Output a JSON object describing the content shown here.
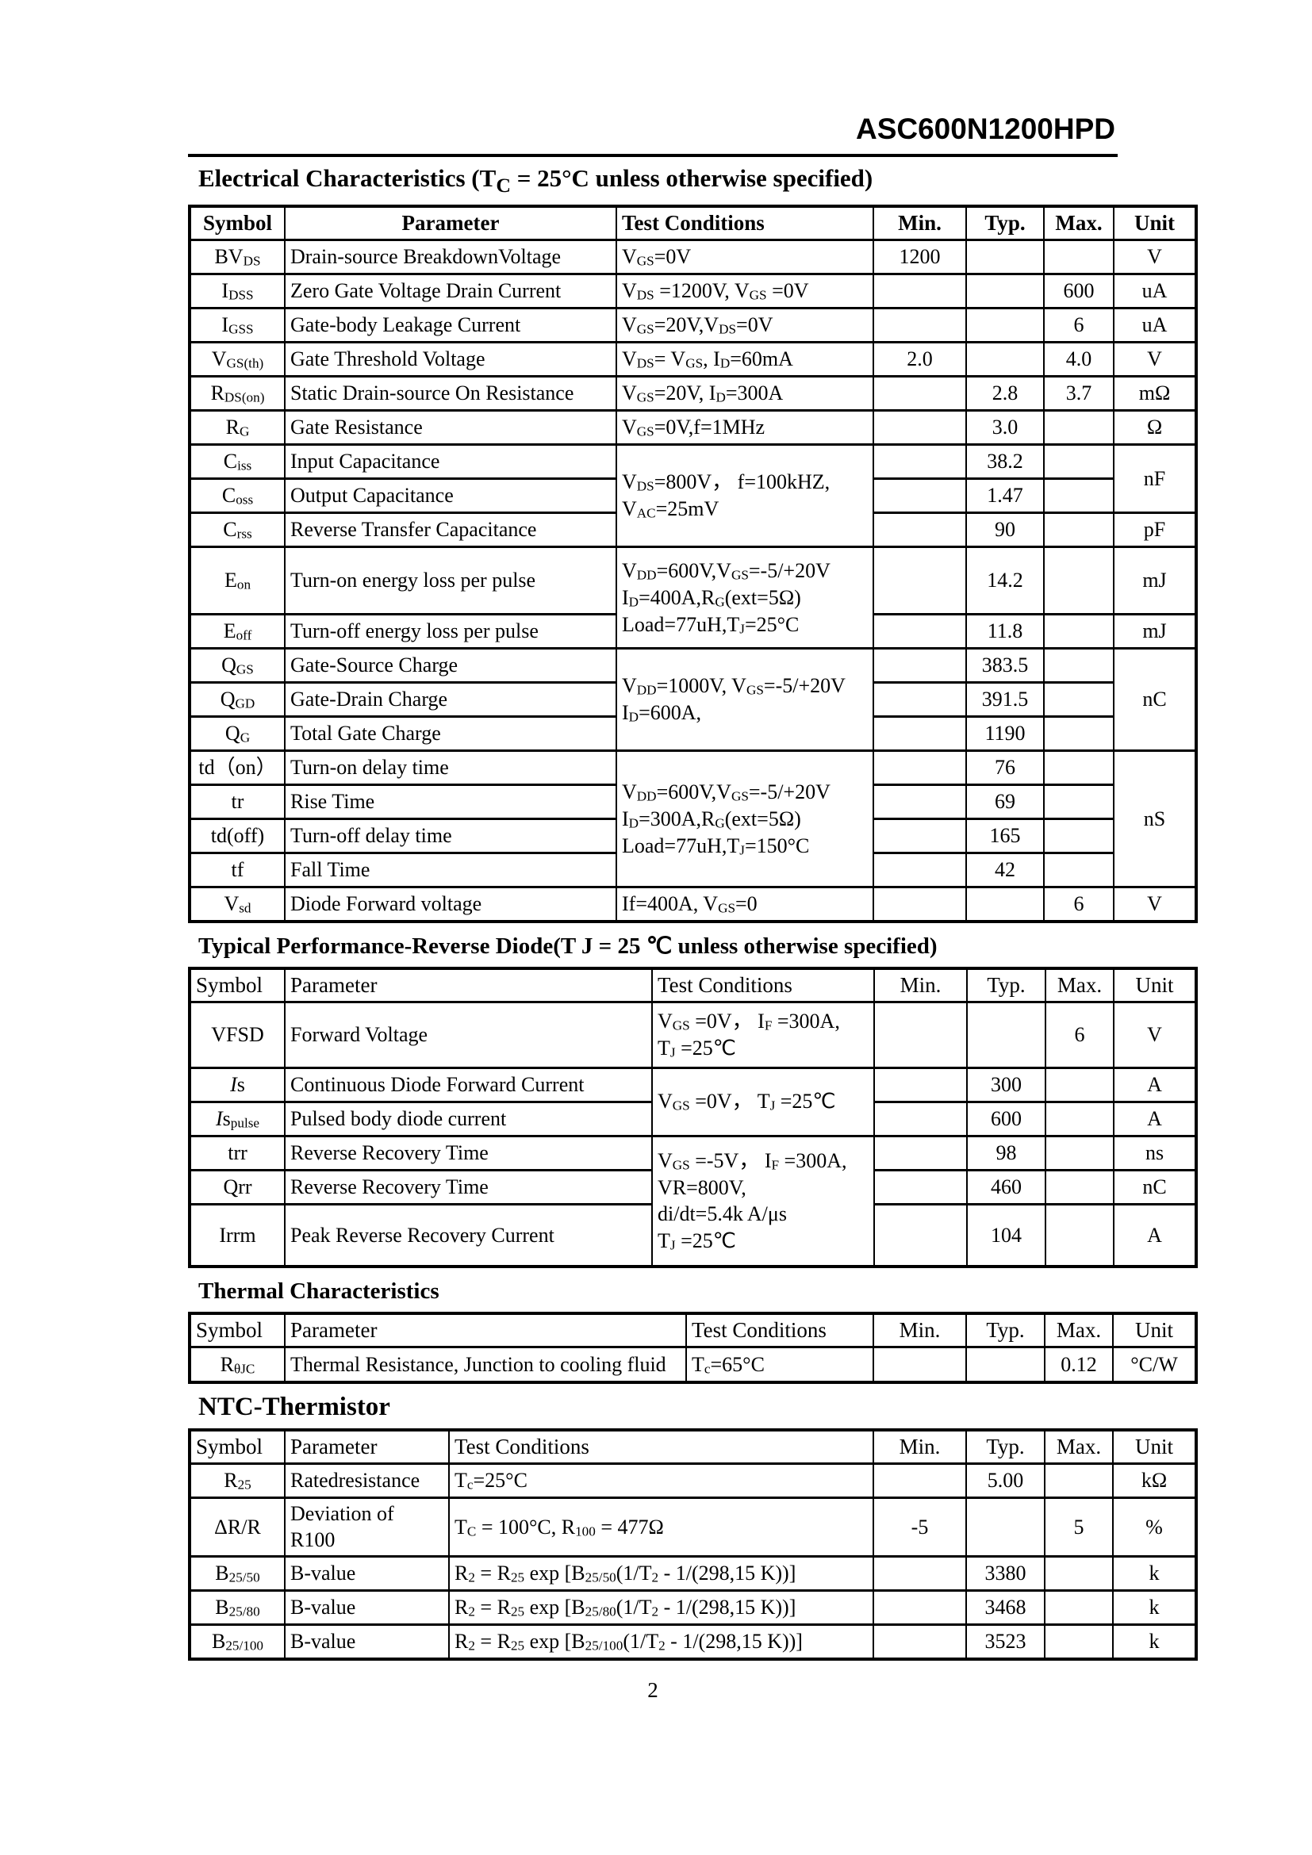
{
  "page": {
    "doc_title": "ASC600N1200HPD",
    "page_number": "2"
  },
  "sections": [
    {
      "id": "electrical",
      "title": "Electrical Characteristics (T~C~ = 25°C unless otherwise specified)",
      "columns": [
        "Symbol",
        "Parameter",
        "Test Conditions",
        "Min.",
        "Typ.",
        "Max.",
        "Unit"
      ],
      "rows": [
        {
          "cells": [
            {
              "c": 0,
              "t": "BV~DS~"
            },
            {
              "c": 1,
              "t": "Drain-source BreakdownVoltage"
            },
            {
              "c": 2,
              "t": "V~GS~=0V"
            },
            {
              "c": 3,
              "t": "1200"
            },
            {
              "c": 4,
              "t": ""
            },
            {
              "c": 5,
              "t": ""
            },
            {
              "c": 6,
              "t": "V"
            }
          ]
        },
        {
          "cells": [
            {
              "c": 0,
              "t": "I~DSS~"
            },
            {
              "c": 1,
              "t": "Zero Gate Voltage Drain Current"
            },
            {
              "c": 2,
              "t": "V~DS~ =1200V, V~GS~ =0V"
            },
            {
              "c": 3,
              "t": ""
            },
            {
              "c": 4,
              "t": ""
            },
            {
              "c": 5,
              "t": "600"
            },
            {
              "c": 6,
              "t": "uA"
            }
          ]
        },
        {
          "cells": [
            {
              "c": 0,
              "t": "I~GSS~"
            },
            {
              "c": 1,
              "t": "Gate-body Leakage Current"
            },
            {
              "c": 2,
              "t": "V~GS~=20V,V~DS~=0V"
            },
            {
              "c": 3,
              "t": ""
            },
            {
              "c": 4,
              "t": ""
            },
            {
              "c": 5,
              "t": "6"
            },
            {
              "c": 6,
              "t": "uA"
            }
          ]
        },
        {
          "cells": [
            {
              "c": 0,
              "t": "V~GS(th)~"
            },
            {
              "c": 1,
              "t": "Gate Threshold Voltage"
            },
            {
              "c": 2,
              "t": "V~DS~= V~GS~, I~D~=60mA"
            },
            {
              "c": 3,
              "t": "2.0"
            },
            {
              "c": 4,
              "t": ""
            },
            {
              "c": 5,
              "t": "4.0"
            },
            {
              "c": 6,
              "t": "V"
            }
          ]
        },
        {
          "cells": [
            {
              "c": 0,
              "t": "R~DS(on)~"
            },
            {
              "c": 1,
              "t": "Static Drain-source On Resistance"
            },
            {
              "c": 2,
              "t": "V~GS~=20V, I~D~=300A"
            },
            {
              "c": 3,
              "t": ""
            },
            {
              "c": 4,
              "t": "2.8"
            },
            {
              "c": 5,
              "t": "3.7"
            },
            {
              "c": 6,
              "t": "mΩ"
            }
          ]
        },
        {
          "cells": [
            {
              "c": 0,
              "t": "R~G~"
            },
            {
              "c": 1,
              "t": "Gate Resistance"
            },
            {
              "c": 2,
              "t": "V~GS~=0V,f=1MHz"
            },
            {
              "c": 3,
              "t": ""
            },
            {
              "c": 4,
              "t": "3.0"
            },
            {
              "c": 5,
              "t": ""
            },
            {
              "c": 6,
              "t": "Ω"
            }
          ]
        },
        {
          "cells": [
            {
              "c": 0,
              "t": "C~iss~"
            },
            {
              "c": 1,
              "t": "Input Capacitance"
            },
            {
              "c": 2,
              "t": "V~DS~=800V， f=100kHZ,\nV~AC~=25mV",
              "rs": 3
            },
            {
              "c": 3,
              "t": ""
            },
            {
              "c": 4,
              "t": "38.2"
            },
            {
              "c": 5,
              "t": ""
            },
            {
              "c": 6,
              "t": "nF",
              "rs": 2
            }
          ]
        },
        {
          "cells": [
            {
              "c": 0,
              "t": "C~oss~"
            },
            {
              "c": 1,
              "t": "Output Capacitance"
            },
            {
              "c": 3,
              "t": ""
            },
            {
              "c": 4,
              "t": "1.47"
            },
            {
              "c": 5,
              "t": ""
            }
          ]
        },
        {
          "cells": [
            {
              "c": 0,
              "t": "C~rss~"
            },
            {
              "c": 1,
              "t": "Reverse Transfer Capacitance"
            },
            {
              "c": 3,
              "t": ""
            },
            {
              "c": 4,
              "t": "90"
            },
            {
              "c": 5,
              "t": ""
            },
            {
              "c": 6,
              "t": "pF"
            }
          ]
        },
        {
          "cells": [
            {
              "c": 0,
              "t": "E~on~"
            },
            {
              "c": 1,
              "t": "Turn-on energy loss per pulse"
            },
            {
              "c": 2,
              "t": "V~DD~=600V,V~GS~=-5/+20V\nI~D~=400A,R~G~(ext=5Ω)\nLoad=77uH,T~J~=25°C",
              "rs": 2
            },
            {
              "c": 3,
              "t": ""
            },
            {
              "c": 4,
              "t": "14.2"
            },
            {
              "c": 5,
              "t": ""
            },
            {
              "c": 6,
              "t": "mJ"
            }
          ]
        },
        {
          "cells": [
            {
              "c": 0,
              "t": "E~off~"
            },
            {
              "c": 1,
              "t": "Turn-off energy loss per pulse"
            },
            {
              "c": 3,
              "t": ""
            },
            {
              "c": 4,
              "t": "11.8"
            },
            {
              "c": 5,
              "t": ""
            },
            {
              "c": 6,
              "t": "mJ"
            }
          ]
        },
        {
          "cells": [
            {
              "c": 0,
              "t": "Q~GS~"
            },
            {
              "c": 1,
              "t": "Gate-Source Charge"
            },
            {
              "c": 2,
              "t": "V~DD~=1000V, V~GS~=-5/+20V\nI~D~=600A,",
              "rs": 3
            },
            {
              "c": 3,
              "t": ""
            },
            {
              "c": 4,
              "t": "383.5"
            },
            {
              "c": 5,
              "t": ""
            },
            {
              "c": 6,
              "t": "nC",
              "rs": 3
            }
          ]
        },
        {
          "cells": [
            {
              "c": 0,
              "t": "Q~GD~"
            },
            {
              "c": 1,
              "t": "Gate-Drain Charge"
            },
            {
              "c": 3,
              "t": ""
            },
            {
              "c": 4,
              "t": "391.5"
            },
            {
              "c": 5,
              "t": ""
            }
          ]
        },
        {
          "cells": [
            {
              "c": 0,
              "t": "Q~G~"
            },
            {
              "c": 1,
              "t": "Total Gate Charge"
            },
            {
              "c": 3,
              "t": ""
            },
            {
              "c": 4,
              "t": "1190"
            },
            {
              "c": 5,
              "t": ""
            }
          ]
        },
        {
          "cells": [
            {
              "c": 0,
              "t": "td（on）"
            },
            {
              "c": 1,
              "t": "Turn-on delay time"
            },
            {
              "c": 2,
              "t": "V~DD~=600V,V~GS~=-5/+20V\nI~D~=300A,R~G~(ext=5Ω)\nLoad=77uH,T~J~=150°C",
              "rs": 4
            },
            {
              "c": 3,
              "t": ""
            },
            {
              "c": 4,
              "t": "76"
            },
            {
              "c": 5,
              "t": ""
            },
            {
              "c": 6,
              "t": "nS",
              "rs": 4
            }
          ]
        },
        {
          "cells": [
            {
              "c": 0,
              "t": "tr"
            },
            {
              "c": 1,
              "t": "Rise Time"
            },
            {
              "c": 3,
              "t": ""
            },
            {
              "c": 4,
              "t": "69"
            },
            {
              "c": 5,
              "t": ""
            }
          ]
        },
        {
          "cells": [
            {
              "c": 0,
              "t": "td(off)"
            },
            {
              "c": 1,
              "t": "Turn-off delay time"
            },
            {
              "c": 3,
              "t": ""
            },
            {
              "c": 4,
              "t": "165"
            },
            {
              "c": 5,
              "t": ""
            }
          ]
        },
        {
          "cells": [
            {
              "c": 0,
              "t": "tf"
            },
            {
              "c": 1,
              "t": "Fall Time"
            },
            {
              "c": 3,
              "t": ""
            },
            {
              "c": 4,
              "t": "42"
            },
            {
              "c": 5,
              "t": ""
            }
          ]
        },
        {
          "cells": [
            {
              "c": 0,
              "t": "V~sd~"
            },
            {
              "c": 1,
              "t": "Diode Forward voltage"
            },
            {
              "c": 2,
              "t": "If=400A, V~GS~=0"
            },
            {
              "c": 3,
              "t": ""
            },
            {
              "c": 4,
              "t": ""
            },
            {
              "c": 5,
              "t": "6"
            },
            {
              "c": 6,
              "t": "V"
            }
          ]
        }
      ]
    },
    {
      "id": "reverse-diode",
      "title": "Typical Performance-Reverse Diode(T J = 25 ℃  unless otherwise specified)",
      "columns": [
        "Symbol",
        "Parameter",
        "Test Conditions",
        "Min.",
        "Typ.",
        "Max.",
        "Unit"
      ],
      "rows": [
        {
          "cells": [
            {
              "c": 0,
              "t": "VFSD"
            },
            {
              "c": 1,
              "t": "Forward Voltage"
            },
            {
              "c": 2,
              "t": "V~GS~ =0V， I~F~ =300A,\nT~J~ =25℃"
            },
            {
              "c": 3,
              "t": ""
            },
            {
              "c": 4,
              "t": ""
            },
            {
              "c": 5,
              "t": "6"
            },
            {
              "c": 6,
              "t": "V"
            }
          ]
        },
        {
          "cells": [
            {
              "c": 0,
              "t": "*I*s"
            },
            {
              "c": 1,
              "t": "Continuous Diode Forward Current"
            },
            {
              "c": 2,
              "t": "V~GS~ =0V，  T~J~ =25℃",
              "rs": 2
            },
            {
              "c": 3,
              "t": ""
            },
            {
              "c": 4,
              "t": "300"
            },
            {
              "c": 5,
              "t": ""
            },
            {
              "c": 6,
              "t": "A"
            }
          ]
        },
        {
          "cells": [
            {
              "c": 0,
              "t": "*I*s~pulse~"
            },
            {
              "c": 1,
              "t": "Pulsed body diode current"
            },
            {
              "c": 3,
              "t": ""
            },
            {
              "c": 4,
              "t": "600"
            },
            {
              "c": 5,
              "t": ""
            },
            {
              "c": 6,
              "t": "A"
            }
          ]
        },
        {
          "cells": [
            {
              "c": 0,
              "t": "trr"
            },
            {
              "c": 1,
              "t": "Reverse Recovery Time"
            },
            {
              "c": 2,
              "t": "V~GS~ =-5V， I~F~ =300A,\nVR=800V,\ndi/dt=5.4k A/μs\nT~J~ =25℃",
              "rs": 3
            },
            {
              "c": 3,
              "t": ""
            },
            {
              "c": 4,
              "t": "98"
            },
            {
              "c": 5,
              "t": ""
            },
            {
              "c": 6,
              "t": "ns"
            }
          ]
        },
        {
          "cells": [
            {
              "c": 0,
              "t": "Qrr"
            },
            {
              "c": 1,
              "t": "Reverse Recovery Time"
            },
            {
              "c": 3,
              "t": ""
            },
            {
              "c": 4,
              "t": "460"
            },
            {
              "c": 5,
              "t": ""
            },
            {
              "c": 6,
              "t": "nC"
            }
          ]
        },
        {
          "cells": [
            {
              "c": 0,
              "t": "Irrm"
            },
            {
              "c": 1,
              "t": "Peak Reverse Recovery Current"
            },
            {
              "c": 3,
              "t": ""
            },
            {
              "c": 4,
              "t": "104"
            },
            {
              "c": 5,
              "t": ""
            },
            {
              "c": 6,
              "t": "A"
            }
          ]
        }
      ]
    },
    {
      "id": "thermal",
      "title": "Thermal Characteristics",
      "columns": [
        "Symbol",
        "Parameter",
        "Test Conditions",
        "Min.",
        "Typ.",
        "Max.",
        "Unit"
      ],
      "rows": [
        {
          "cells": [
            {
              "c": 0,
              "t": "R~θJC~"
            },
            {
              "c": 1,
              "t": "Thermal Resistance, Junction to cooling fluid"
            },
            {
              "c": 2,
              "t": "T~c~=65°C"
            },
            {
              "c": 3,
              "t": ""
            },
            {
              "c": 4,
              "t": ""
            },
            {
              "c": 5,
              "t": "0.12"
            },
            {
              "c": 6,
              "t": "°C/W"
            }
          ]
        }
      ]
    },
    {
      "id": "ntc-thermistor",
      "title": "NTC-Thermistor",
      "columns": [
        "Symbol",
        "Parameter",
        "Test Conditions",
        "Min.",
        "Typ.",
        "Max.",
        "Unit"
      ],
      "rows": [
        {
          "cells": [
            {
              "c": 0,
              "t": "R~25~"
            },
            {
              "c": 1,
              "t": "Ratedresistance"
            },
            {
              "c": 2,
              "t": "T~c~=25°C"
            },
            {
              "c": 3,
              "t": ""
            },
            {
              "c": 4,
              "t": "5.00"
            },
            {
              "c": 5,
              "t": ""
            },
            {
              "c": 6,
              "t": "kΩ"
            }
          ]
        },
        {
          "cells": [
            {
              "c": 0,
              "t": "ΔR/R"
            },
            {
              "c": 1,
              "t": "Deviation of R100"
            },
            {
              "c": 2,
              "t": "T~C~ = 100°C, R~100~ = 477Ω"
            },
            {
              "c": 3,
              "t": "-5"
            },
            {
              "c": 4,
              "t": ""
            },
            {
              "c": 5,
              "t": "5"
            },
            {
              "c": 6,
              "t": "%"
            }
          ]
        },
        {
          "cells": [
            {
              "c": 0,
              "t": "B~25/50~"
            },
            {
              "c": 1,
              "t": "B-value"
            },
            {
              "c": 2,
              "t": "R~2~ = R~25~ exp [B~25/50~(1/T~2~ - 1/(298,15 K))]"
            },
            {
              "c": 3,
              "t": ""
            },
            {
              "c": 4,
              "t": "3380"
            },
            {
              "c": 5,
              "t": ""
            },
            {
              "c": 6,
              "t": "k"
            }
          ]
        },
        {
          "cells": [
            {
              "c": 0,
              "t": "B~25/80~"
            },
            {
              "c": 1,
              "t": "B-value"
            },
            {
              "c": 2,
              "t": "R~2~ = R~25~ exp [B~25/80~(1/T~2~ - 1/(298,15 K))]"
            },
            {
              "c": 3,
              "t": ""
            },
            {
              "c": 4,
              "t": "3468"
            },
            {
              "c": 5,
              "t": ""
            },
            {
              "c": 6,
              "t": "k"
            }
          ]
        },
        {
          "cells": [
            {
              "c": 0,
              "t": "B~25/100~"
            },
            {
              "c": 1,
              "t": "B-value"
            },
            {
              "c": 2,
              "t": "R~2~ = R~25~ exp [B~25/100~(1/T~2~ - 1/(298,15 K))]"
            },
            {
              "c": 3,
              "t": ""
            },
            {
              "c": 4,
              "t": "3523"
            },
            {
              "c": 5,
              "t": ""
            },
            {
              "c": 6,
              "t": "k"
            }
          ]
        }
      ]
    }
  ]
}
